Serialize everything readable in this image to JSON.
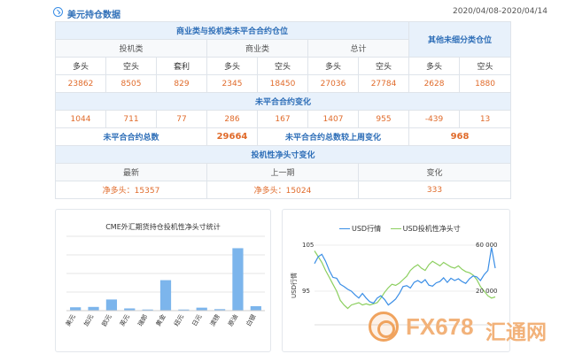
{
  "header": {
    "title": "美元持仓数据",
    "date_range": "2020/04/08-2020/04/14"
  },
  "table": {
    "group_main": "商业类与投机类未平合合约仓位",
    "group_other": "其他未细分类仓位",
    "sub_speculative": "投机类",
    "sub_commercial": "商业类",
    "sub_total": "总计",
    "cols": [
      "多头",
      "空头",
      "套利",
      "多头",
      "空头",
      "多头",
      "空头",
      "多头",
      "空头"
    ],
    "values": [
      "23862",
      "8505",
      "829",
      "2345",
      "18450",
      "27036",
      "27784",
      "2628",
      "1880"
    ],
    "change_title": "未平合合约变化",
    "changes": [
      "1044",
      "711",
      "77",
      "286",
      "167",
      "1407",
      "955",
      "-439",
      "13"
    ],
    "total_label": "未平合合约总数",
    "total_value": "29664",
    "weekly_label": "未平合合约总数较上周变化",
    "weekly_value": "968",
    "net_title": "投机性净头寸变化",
    "net_cols": [
      "最新",
      "上一期",
      "变化"
    ],
    "net_values": [
      "净多头：15357",
      "净多头：15024",
      "333"
    ]
  },
  "bar_chart": {
    "title": "CME外汇期货持仓投机性净头寸统计",
    "color": "#7cb5ec"
  },
  "line_chart": {
    "legend_usd": "USD行情",
    "legend_net": "USD投机性净头寸",
    "color_usd": "#3a8ee6",
    "color_net": "#8ccf5f",
    "y_left_name": "USD行情",
    "y_left_ticks": [
      "105",
      "95"
    ],
    "y_right_ticks": [
      "60 000",
      "20 000"
    ]
  },
  "watermark": {
    "text1": "FX678",
    "text2": "汇通网"
  },
  "chart_data": [
    {
      "type": "bar",
      "title": "CME外汇期货持仓投机性净头寸统计",
      "categories": [
        "美元",
        "加元",
        "欧元",
        "英元",
        "瑞郎",
        "黄金",
        "纽元",
        "日元",
        "澳镑",
        "原油",
        "白银"
      ],
      "values": [
        0.9,
        1.0,
        3.0,
        0.6,
        0.3,
        8.2,
        0.3,
        0.8,
        0.4,
        16.8,
        1.2
      ],
      "ylim": [
        0,
        20
      ],
      "grid": true
    },
    {
      "type": "line",
      "series": [
        {
          "name": "USD行情",
          "axis": "left",
          "values": [
            101,
            102.5,
            103,
            101.5,
            99.5,
            98,
            97.8,
            96.5,
            96,
            95.4,
            95,
            94.2,
            93.5,
            94.5,
            93.5,
            92.7,
            92.4,
            93.5,
            94,
            93.2,
            92,
            92.6,
            93.3,
            94.5,
            96,
            96.2,
            95.7,
            96.9,
            97.3,
            96.8,
            97.5,
            96.3,
            96.1,
            96.8,
            97.1,
            97.9,
            96.9,
            97.8,
            97.3,
            97.7,
            97.1,
            96.7,
            97.7,
            98.3,
            98.1,
            97.3,
            98.6,
            99.5,
            104.5,
            100
          ]
        },
        {
          "name": "USD投机性净头寸",
          "axis": "right",
          "values": [
            55000,
            50000,
            45000,
            38000,
            32000,
            26000,
            20000,
            12000,
            8000,
            5000,
            8000,
            9000,
            10000,
            8000,
            9000,
            8000,
            9000,
            10000,
            14000,
            19000,
            23000,
            26000,
            25000,
            27000,
            30000,
            33000,
            38000,
            41000,
            43000,
            40000,
            38000,
            43000,
            46000,
            44000,
            42000,
            45000,
            43000,
            41000,
            40000,
            42000,
            39000,
            37000,
            36000,
            34000,
            30000,
            24000,
            20000,
            16000,
            14000,
            15000
          ]
        }
      ],
      "y_left_ticks": [
        105,
        95
      ],
      "y_right_ticks": [
        60000,
        20000
      ]
    }
  ]
}
